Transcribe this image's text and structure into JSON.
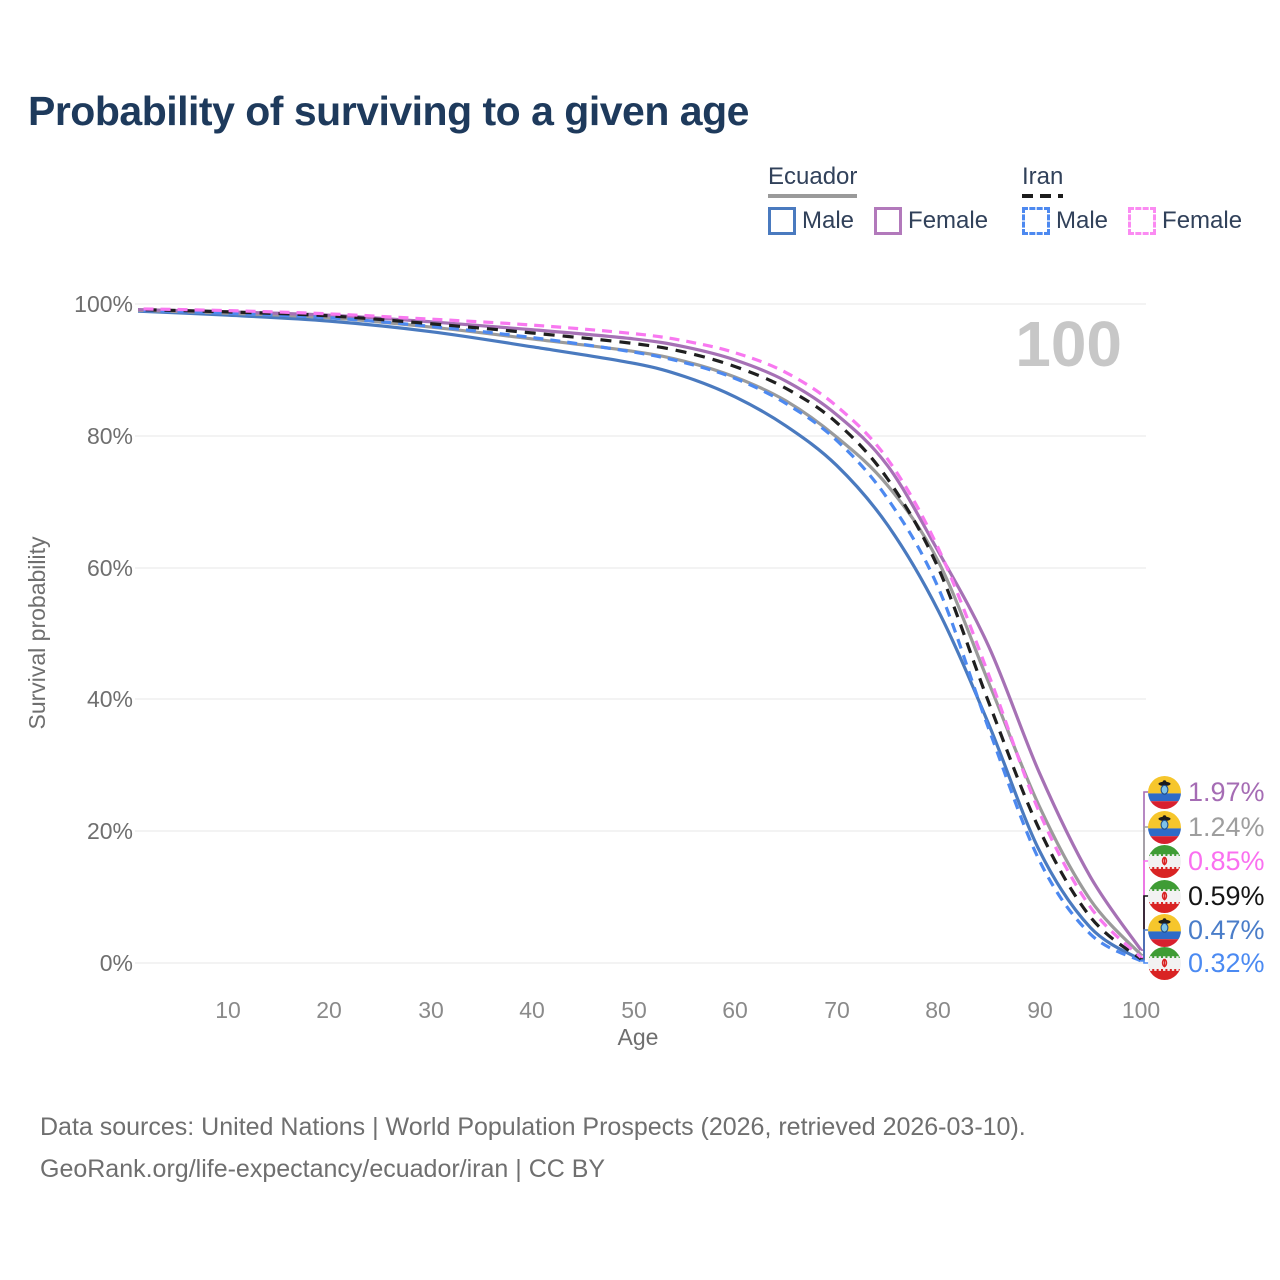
{
  "title": "Probability of surviving to a given age",
  "watermark": "100",
  "legend": {
    "ecuador": {
      "label": "Ecuador",
      "male": "Male",
      "female": "Female"
    },
    "iran": {
      "label": "Iran",
      "male": "Male",
      "female": "Female"
    }
  },
  "chart_data": {
    "type": "line",
    "title": "Probability of surviving to a given age",
    "xlabel": "Age",
    "ylabel": "Survival probability",
    "xlim": [
      0,
      100
    ],
    "ylim": [
      0,
      100
    ],
    "grid": "horizontal-only",
    "legend_position": "top-right",
    "xtick_labels": [
      "10",
      "20",
      "30",
      "40",
      "50",
      "60",
      "70",
      "80",
      "90",
      "100"
    ],
    "ytick_labels": [
      "0%",
      "20%",
      "40%",
      "60%",
      "80%",
      "100%"
    ],
    "ages": [
      0,
      10,
      20,
      30,
      40,
      50,
      55,
      60,
      65,
      70,
      75,
      80,
      85,
      90,
      95,
      100
    ],
    "series": [
      {
        "name": "Ecuador Male",
        "country": "Ecuador",
        "sex": "Male",
        "line": "solid",
        "color": "#4a7abf",
        "values": [
          99.0,
          98.3,
          97.4,
          95.8,
          93.5,
          91.0,
          89.0,
          85.9,
          81.5,
          75.5,
          66.5,
          53.5,
          36.2,
          17.0,
          5.4,
          0.47
        ]
      },
      {
        "name": "Ecuador Both sexes",
        "country": "Ecuador",
        "sex": "Both",
        "line": "solid",
        "color": "#9b9b9b",
        "values": [
          99.1,
          98.6,
          97.9,
          96.5,
          94.7,
          92.8,
          91.3,
          88.9,
          85.3,
          79.8,
          72.5,
          61.0,
          42.5,
          23.7,
          9.6,
          1.24
        ]
      },
      {
        "name": "Ecuador Female",
        "country": "Ecuador",
        "sex": "Female",
        "line": "solid",
        "color": "#a671b5",
        "values": [
          99.2,
          98.8,
          98.3,
          97.3,
          96.1,
          94.7,
          93.5,
          91.5,
          88.3,
          83.2,
          75.5,
          62.5,
          48.0,
          28.8,
          13.1,
          1.97
        ]
      },
      {
        "name": "Iran Male",
        "country": "Iran",
        "sex": "Male",
        "line": "dashed",
        "color": "#4d89f0",
        "values": [
          99.1,
          98.6,
          97.9,
          96.6,
          94.9,
          92.7,
          91.1,
          88.7,
          84.9,
          79.3,
          70.5,
          57.0,
          35.5,
          15.5,
          4.4,
          0.32
        ]
      },
      {
        "name": "Iran Both sexes",
        "country": "Iran",
        "sex": "Both",
        "line": "dashed",
        "color": "#1f1f1f",
        "values": [
          99.2,
          98.8,
          98.2,
          97.0,
          95.6,
          94.0,
          92.7,
          90.5,
          87.2,
          82.0,
          73.5,
          60.0,
          39.5,
          20.2,
          7.0,
          0.59
        ]
      },
      {
        "name": "Iran Female",
        "country": "Iran",
        "sex": "Female",
        "line": "dashed",
        "color": "#f878f0",
        "values": [
          99.3,
          99.0,
          98.5,
          97.7,
          96.8,
          95.5,
          94.4,
          92.6,
          89.6,
          84.5,
          76.5,
          63.0,
          43.7,
          22.8,
          8.5,
          0.85
        ]
      }
    ],
    "end_labels": [
      {
        "flag": "ecuador",
        "label": "1.97%",
        "value": 1.97,
        "color": "#a56cb4",
        "series": "Ecuador Female"
      },
      {
        "flag": "ecuador",
        "label": "1.24%",
        "value": 1.24,
        "color": "#9e9e9e",
        "series": "Ecuador Both sexes"
      },
      {
        "flag": "iran",
        "label": "0.85%",
        "value": 0.85,
        "color": "#fa70f0",
        "series": "Iran Female"
      },
      {
        "flag": "iran",
        "label": "0.59%",
        "value": 0.59,
        "color": "#151515",
        "series": "Iran Both sexes"
      },
      {
        "flag": "ecuador",
        "label": "0.47%",
        "value": 0.47,
        "color": "#4a7dc9",
        "series": "Ecuador Male"
      },
      {
        "flag": "iran",
        "label": "0.32%",
        "value": 0.32,
        "color": "#4b8af2",
        "series": "Iran Male"
      }
    ]
  },
  "footer": {
    "line1": "Data sources: United Nations | World Population Prospects (2026, retrieved 2026-03-10).",
    "line2": "GeoRank.org/life-expectancy/ecuador/iran | CC BY"
  }
}
